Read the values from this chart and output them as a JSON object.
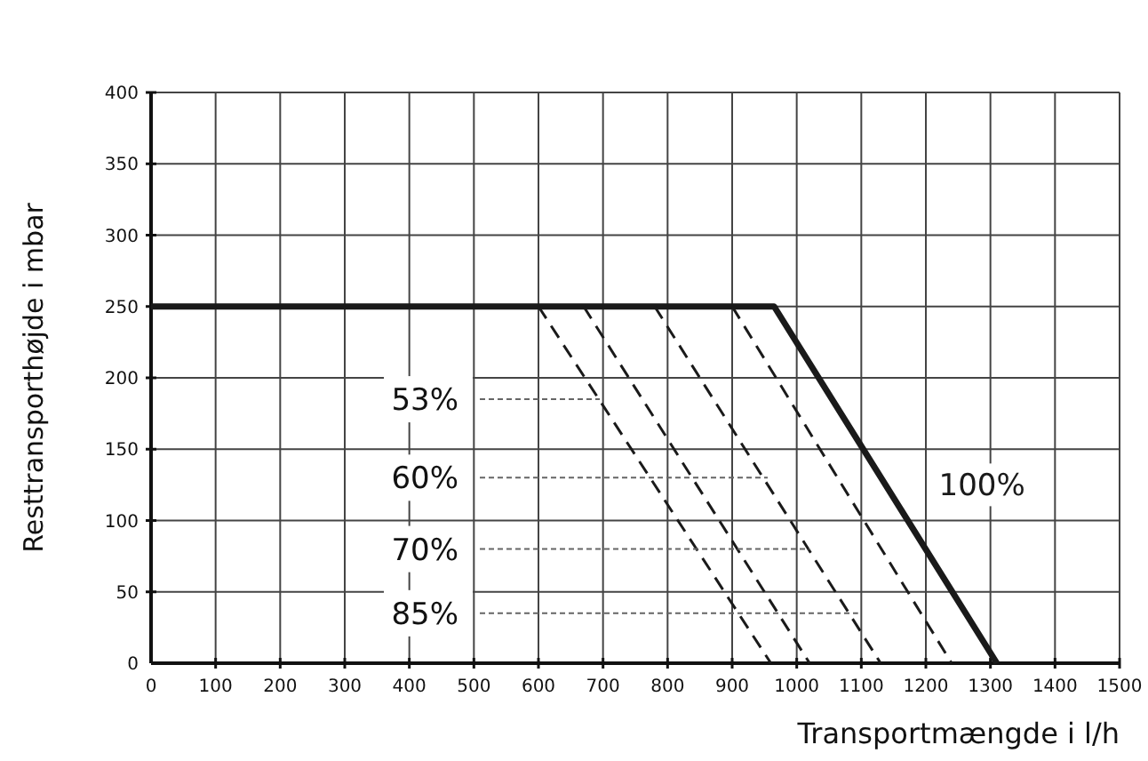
{
  "chart_data": {
    "type": "line",
    "xlabel": "Transportmængde i l/h",
    "ylabel": "Resttransporthøjde i mbar",
    "xlim": [
      0,
      1500
    ],
    "xticks": [
      0,
      100,
      200,
      300,
      400,
      500,
      600,
      700,
      800,
      900,
      1000,
      1100,
      1200,
      1300,
      1400,
      1500
    ],
    "ylim": [
      0,
      400
    ],
    "yticks": [
      0,
      50,
      100,
      150,
      200,
      250,
      300,
      350,
      400
    ],
    "grid": true,
    "series": [
      {
        "name": "100%",
        "color": "#1a1a1a",
        "line_style": "solid",
        "x": [
          0,
          965,
          1310
        ],
        "values": [
          250,
          250,
          0
        ]
      },
      {
        "color": "#1a1a1a",
        "line_style": "dashed",
        "x": [
          600,
          960
        ],
        "values": [
          250,
          0
        ]
      },
      {
        "color": "#1a1a1a",
        "line_style": "dashed",
        "x": [
          670,
          1020
        ],
        "values": [
          250,
          0
        ]
      },
      {
        "color": "#1a1a1a",
        "line_style": "dashed",
        "x": [
          780,
          1130
        ],
        "values": [
          250,
          0
        ]
      },
      {
        "color": "#1a1a1a",
        "line_style": "dashed",
        "x": [
          900,
          1240
        ],
        "values": [
          250,
          0
        ]
      }
    ],
    "annotations": [
      {
        "text": "53%",
        "x": 695,
        "y": 185
      },
      {
        "text": "60%",
        "x": 955,
        "y": 130
      },
      {
        "text": "70%",
        "x": 1020,
        "y": 80
      },
      {
        "text": "85%",
        "x": 1095,
        "y": 35
      }
    ]
  }
}
